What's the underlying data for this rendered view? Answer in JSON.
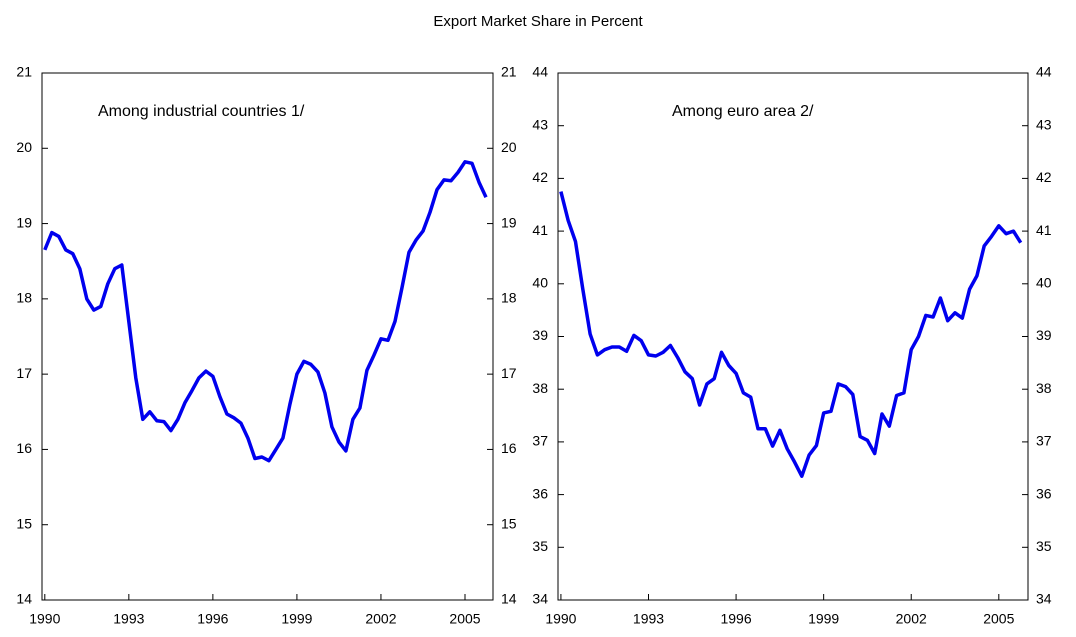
{
  "title": "Export Market Share in Percent",
  "chart_data": [
    {
      "type": "line",
      "annotation": "Among industrial countries 1/",
      "x": [
        1990,
        1990.25,
        1990.5,
        1990.75,
        1991,
        1991.25,
        1991.5,
        1991.75,
        1992,
        1992.25,
        1992.5,
        1992.75,
        1993,
        1993.25,
        1993.5,
        1993.75,
        1994,
        1994.25,
        1994.5,
        1994.75,
        1995,
        1995.25,
        1995.5,
        1995.75,
        1996,
        1996.25,
        1996.5,
        1996.75,
        1997,
        1997.25,
        1997.5,
        1997.75,
        1998,
        1998.25,
        1998.5,
        1998.75,
        1999,
        1999.25,
        1999.5,
        1999.75,
        2000,
        2000.25,
        2000.5,
        2000.75,
        2001,
        2001.25,
        2001.5,
        2001.75,
        2002,
        2002.25,
        2002.5,
        2002.75,
        2003,
        2003.25,
        2003.5,
        2003.75,
        2004,
        2004.25,
        2004.5,
        2004.75,
        2005,
        2005.25,
        2005.5,
        2005.75
      ],
      "values": [
        18.65,
        18.88,
        18.83,
        18.65,
        18.6,
        18.4,
        18.0,
        17.85,
        17.9,
        18.2,
        18.4,
        18.45,
        17.7,
        16.95,
        16.4,
        16.5,
        16.38,
        16.37,
        16.25,
        16.4,
        16.62,
        16.78,
        16.95,
        17.04,
        16.97,
        16.7,
        16.47,
        16.42,
        16.35,
        16.15,
        15.88,
        15.9,
        15.85,
        16.0,
        16.15,
        16.6,
        17.0,
        17.17,
        17.13,
        17.03,
        16.75,
        16.3,
        16.1,
        15.98,
        16.4,
        16.55,
        17.05,
        17.25,
        17.47,
        17.45,
        17.7,
        18.15,
        18.62,
        18.78,
        18.9,
        19.15,
        19.45,
        19.58,
        19.57,
        19.68,
        19.82,
        19.8,
        19.55,
        19.35
      ],
      "color": "#0000ee",
      "xlim": [
        1989.9,
        2006
      ],
      "xticks": [
        1990,
        1993,
        1996,
        1999,
        2002,
        2005
      ],
      "ylim": [
        14,
        21
      ],
      "yticks": [
        14,
        15,
        16,
        17,
        18,
        19,
        20,
        21
      ]
    },
    {
      "type": "line",
      "annotation": "Among euro area 2/",
      "x": [
        1990,
        1990.25,
        1990.5,
        1990.75,
        1991,
        1991.25,
        1991.5,
        1991.75,
        1992,
        1992.25,
        1992.5,
        1992.75,
        1993,
        1993.25,
        1993.5,
        1993.75,
        1994,
        1994.25,
        1994.5,
        1994.75,
        1995,
        1995.25,
        1995.5,
        1995.75,
        1996,
        1996.25,
        1996.5,
        1996.75,
        1997,
        1997.25,
        1997.5,
        1997.75,
        1998,
        1998.25,
        1998.5,
        1998.75,
        1999,
        1999.25,
        1999.5,
        1999.75,
        2000,
        2000.25,
        2000.5,
        2000.75,
        2001,
        2001.25,
        2001.5,
        2001.75,
        2002,
        2002.25,
        2002.5,
        2002.75,
        2003,
        2003.25,
        2003.5,
        2003.75,
        2004,
        2004.25,
        2004.5,
        2004.75,
        2005,
        2005.25,
        2005.5,
        2005.75
      ],
      "values": [
        41.75,
        41.2,
        40.8,
        39.9,
        39.05,
        38.65,
        38.75,
        38.8,
        38.8,
        38.72,
        39.02,
        38.92,
        38.65,
        38.63,
        38.7,
        38.83,
        38.6,
        38.33,
        38.2,
        37.7,
        38.1,
        38.2,
        38.7,
        38.45,
        38.3,
        37.93,
        37.85,
        37.25,
        37.25,
        36.92,
        37.22,
        36.87,
        36.62,
        36.35,
        36.75,
        36.93,
        37.55,
        37.58,
        38.1,
        38.05,
        37.9,
        37.1,
        37.03,
        36.78,
        37.53,
        37.3,
        37.88,
        37.93,
        38.75,
        39.0,
        39.4,
        39.37,
        39.73,
        39.3,
        39.45,
        39.35,
        39.9,
        40.15,
        40.72,
        40.9,
        41.1,
        40.95,
        41.0,
        40.78
      ],
      "color": "#0000ee",
      "xlim": [
        1989.9,
        2006
      ],
      "xticks": [
        1990,
        1993,
        1996,
        1999,
        2002,
        2005
      ],
      "ylim": [
        34,
        44
      ],
      "yticks": [
        34,
        35,
        36,
        37,
        38,
        39,
        40,
        41,
        42,
        43,
        44
      ]
    }
  ]
}
